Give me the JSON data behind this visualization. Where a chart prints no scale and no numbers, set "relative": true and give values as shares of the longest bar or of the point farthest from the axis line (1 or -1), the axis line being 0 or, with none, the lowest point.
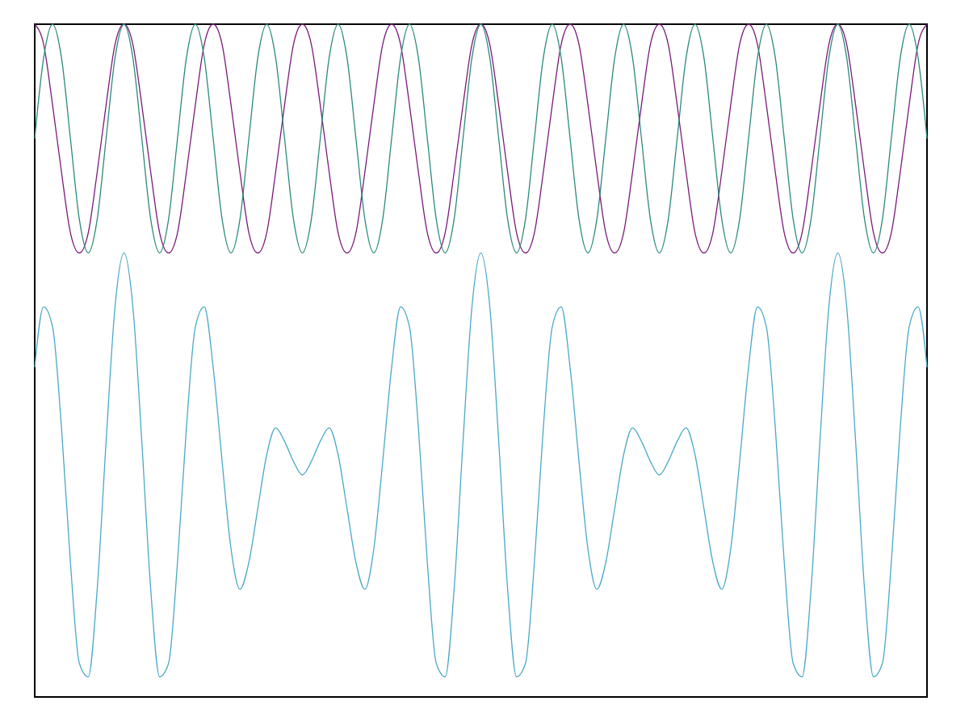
{
  "chart_data": {
    "type": "line",
    "relative": true,
    "categories": [
      null,
      null,
      null,
      null,
      null,
      null,
      null,
      null,
      null,
      null,
      null,
      null,
      null,
      null,
      null,
      null,
      null,
      null,
      null,
      null,
      null,
      null,
      null,
      null,
      null,
      null,
      null,
      null,
      null,
      null,
      null,
      null,
      null,
      null,
      null,
      null,
      null,
      null,
      null,
      null,
      null,
      null,
      null,
      null,
      null,
      null,
      null,
      null,
      null,
      null,
      null,
      null,
      null,
      null,
      null,
      null,
      null,
      null,
      null,
      null,
      null,
      null,
      null,
      null,
      null,
      null,
      null,
      null,
      null,
      null,
      null,
      null,
      null,
      null,
      null,
      null,
      null,
      null,
      null,
      null,
      null,
      null,
      null,
      null,
      null,
      null,
      null,
      null,
      null,
      null,
      null,
      null,
      null,
      null,
      null,
      null,
      null,
      null,
      null,
      null,
      null
    ],
    "series": [
      {
        "color": "#7a1a7a",
        "values": [
          1,
          0.97,
          0.88,
          0.78,
          0.69,
          0.66,
          0.69,
          0.78,
          0.88,
          0.97,
          1,
          0.97,
          0.88,
          0.78,
          0.69,
          0.66,
          0.69,
          0.78,
          0.88,
          0.97,
          1,
          0.97,
          0.88,
          0.78,
          0.69,
          0.66,
          0.69,
          0.78,
          0.88,
          0.97,
          1,
          0.97,
          0.88,
          0.78,
          0.69,
          0.66,
          0.69,
          0.78,
          0.88,
          0.97,
          1,
          0.97,
          0.88,
          0.78,
          0.69,
          0.66,
          0.69,
          0.78,
          0.88,
          0.97,
          1,
          0.97,
          0.88,
          0.78,
          0.69,
          0.66,
          0.69,
          0.78,
          0.88,
          0.97,
          1,
          0.97,
          0.88,
          0.78,
          0.69,
          0.66,
          0.69,
          0.78,
          0.88,
          0.97,
          1,
          0.97,
          0.88,
          0.78,
          0.69,
          0.66,
          0.69,
          0.78,
          0.88,
          0.97,
          1,
          0.97,
          0.88,
          0.78,
          0.69,
          0.66,
          0.69,
          0.78,
          0.88,
          0.97,
          1,
          0.97,
          0.88,
          0.78,
          0.69,
          0.66,
          0.69,
          0.78,
          0.88,
          0.97,
          1
        ]
      },
      {
        "color": "#2a8a7a",
        "values": [
          0.83,
          0.95,
          1,
          0.95,
          0.83,
          0.71,
          0.66,
          0.71,
          0.83,
          0.95,
          1,
          0.95,
          0.83,
          0.71,
          0.66,
          0.71,
          0.83,
          0.95,
          1,
          0.95,
          0.83,
          0.71,
          0.66,
          0.71,
          0.83,
          0.95,
          1,
          0.95,
          0.83,
          0.71,
          0.66,
          0.71,
          0.83,
          0.95,
          1,
          0.95,
          0.83,
          0.71,
          0.66,
          0.71,
          0.83,
          0.95,
          1,
          0.95,
          0.83,
          0.71,
          0.66,
          0.71,
          0.83,
          0.95,
          1,
          0.95,
          0.83,
          0.71,
          0.66,
          0.71,
          0.83,
          0.95,
          1,
          0.95,
          0.83,
          0.71,
          0.66,
          0.71,
          0.83,
          0.95,
          1,
          0.95,
          0.83,
          0.71,
          0.66,
          0.71,
          0.83,
          0.95,
          1,
          0.95,
          0.83,
          0.71,
          0.66,
          0.71,
          0.83,
          0.95,
          1,
          0.95,
          0.83,
          0.71,
          0.66,
          0.71,
          0.83,
          0.95,
          1,
          0.95,
          0.83,
          0.71,
          0.66,
          0.71,
          0.83,
          0.95,
          1,
          0.95,
          0.83
        ]
      },
      {
        "color": "#4aa8c8",
        "values": [
          0.49,
          0.58,
          0.55,
          0.4,
          0.2,
          0.05,
          0.03,
          0.16,
          0.38,
          0.58,
          0.66,
          0.58,
          0.38,
          0.16,
          0.03,
          0.05,
          0.2,
          0.4,
          0.55,
          0.58,
          0.49,
          0.35,
          0.22,
          0.16,
          0.2,
          0.28,
          0.36,
          0.4,
          0.38,
          0.35,
          0.33,
          0.35,
          0.38,
          0.4,
          0.36,
          0.28,
          0.2,
          0.16,
          0.22,
          0.35,
          0.49,
          0.58,
          0.55,
          0.4,
          0.2,
          0.05,
          0.03,
          0.16,
          0.38,
          0.58,
          0.66,
          0.58,
          0.38,
          0.16,
          0.03,
          0.05,
          0.2,
          0.4,
          0.55,
          0.58,
          0.49,
          0.35,
          0.22,
          0.16,
          0.2,
          0.28,
          0.36,
          0.4,
          0.38,
          0.35,
          0.33,
          0.35,
          0.38,
          0.4,
          0.36,
          0.28,
          0.2,
          0.16,
          0.22,
          0.35,
          0.49,
          0.58,
          0.55,
          0.4,
          0.2,
          0.05,
          0.03,
          0.16,
          0.38,
          0.58,
          0.66,
          0.58,
          0.38,
          0.16,
          0.03,
          0.05,
          0.2,
          0.4,
          0.55,
          0.58,
          0.49
        ]
      }
    ]
  }
}
